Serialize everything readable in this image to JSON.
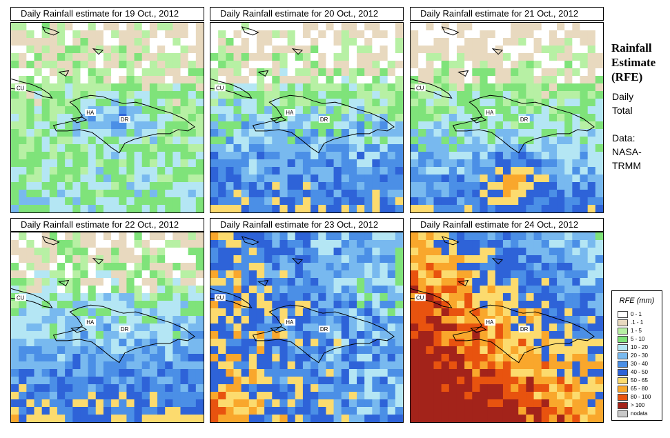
{
  "panels": [
    {
      "title": "Daily Rainfall estimate for  19 Oct., 2012",
      "seed": 19,
      "level": 0
    },
    {
      "title": "Daily Rainfall estimate for  20 Oct., 2012",
      "seed": 20,
      "level": 1
    },
    {
      "title": "Daily Rainfall estimate for  21 Oct., 2012",
      "seed": 21,
      "level": 2
    },
    {
      "title": "Daily Rainfall estimate for  22 Oct., 2012",
      "seed": 22,
      "level": 3
    },
    {
      "title": "Daily Rainfall estimate for  23 Oct., 2012",
      "seed": 23,
      "level": 4
    },
    {
      "title": "Daily Rainfall estimate for  24 Oct., 2012",
      "seed": 24,
      "level": 5
    }
  ],
  "map_labels": {
    "cuba": "CU",
    "haiti": "HA",
    "dominican_republic": "DR"
  },
  "side": {
    "title_line1": "Rainfall",
    "title_line2": "Estimate",
    "title_line3": "(RFE)",
    "line_daily": "Daily",
    "line_total": "Total",
    "line_data": "Data:",
    "line_nasa": "NASA-",
    "line_trmm": "TRMM"
  },
  "legend": {
    "title": "RFE (mm)",
    "items": [
      {
        "label": "0 - 1",
        "color": "#ffffff"
      },
      {
        "label": ".1 - 1",
        "color": "#e8d9bf"
      },
      {
        "label": "1 - 5",
        "color": "#b7f0a4"
      },
      {
        "label": "5 - 10",
        "color": "#7fe37a"
      },
      {
        "label": "10 - 20",
        "color": "#b4e6f4"
      },
      {
        "label": "20 - 30",
        "color": "#78b9ef"
      },
      {
        "label": "30 - 40",
        "color": "#4b8fe6"
      },
      {
        "label": "40 - 50",
        "color": "#2e63d8"
      },
      {
        "label": "50 - 65",
        "color": "#fcdb6e"
      },
      {
        "label": "65 - 80",
        "color": "#f9a72c"
      },
      {
        "label": "80 - 100",
        "color": "#e8530f"
      },
      {
        "label": "> 100",
        "color": "#a3231a"
      },
      {
        "label": "nodata",
        "color": "#c8c8c8"
      }
    ]
  }
}
